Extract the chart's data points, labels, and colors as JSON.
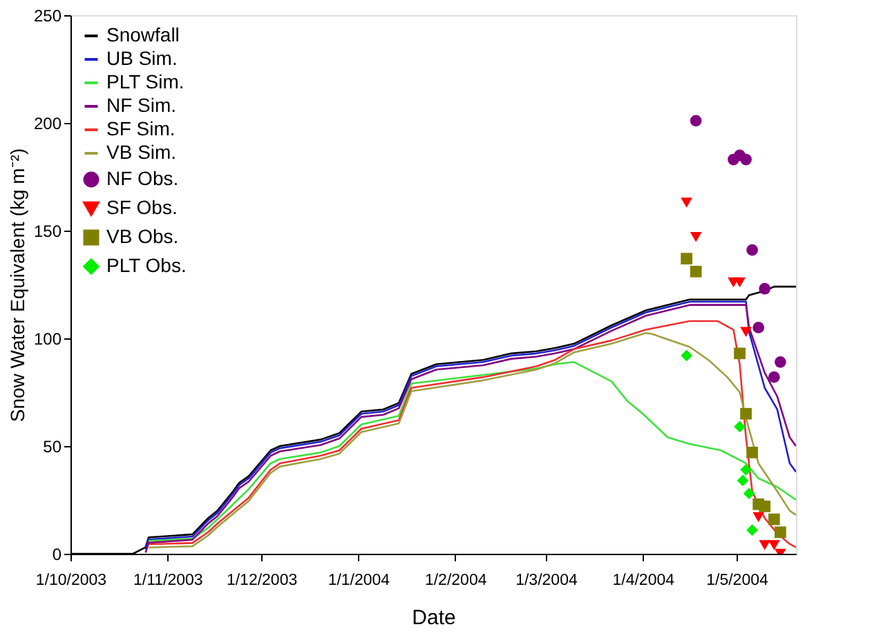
{
  "chart_data": {
    "type": "line",
    "xlabel": "Date",
    "ylabel": "Snow Water Equivalent (kg m⁻²)",
    "xlim": [
      "2003-10-01",
      "2004-05-20"
    ],
    "ylim": [
      0,
      250
    ],
    "yticks": [
      0,
      50,
      100,
      150,
      200,
      250
    ],
    "xticks": [
      {
        "value": "2003-10-01",
        "label": "1/10/2003"
      },
      {
        "value": "2003-11-01",
        "label": "1/11/2003"
      },
      {
        "value": "2003-12-01",
        "label": "1/12/2003"
      },
      {
        "value": "2004-01-01",
        "label": "1/1/2004"
      },
      {
        "value": "2004-02-01",
        "label": "1/2/2004"
      },
      {
        "value": "2004-03-01",
        "label": "1/3/2004"
      },
      {
        "value": "2004-04-01",
        "label": "1/4/2004"
      },
      {
        "value": "2004-05-01",
        "label": "1/5/2004"
      }
    ],
    "grid": false,
    "legend": "top left",
    "series": [
      {
        "name": "Snowfall",
        "color": "#000000",
        "x": [
          "2003-10-01",
          "2003-10-21",
          "2003-10-25",
          "2003-10-26",
          "2003-11-09",
          "2003-11-14",
          "2003-11-17",
          "2003-11-22",
          "2003-11-24",
          "2003-11-27",
          "2003-12-04",
          "2003-12-07",
          "2003-12-20",
          "2003-12-26",
          "2004-01-02",
          "2004-01-09",
          "2004-01-14",
          "2004-01-18",
          "2004-01-26",
          "2004-02-10",
          "2004-02-19",
          "2004-02-27",
          "2004-03-04",
          "2004-03-10",
          "2004-03-22",
          "2004-04-02",
          "2004-04-16",
          "2004-05-04",
          "2004-05-05",
          "2004-05-10",
          "2004-05-13",
          "2004-05-20"
        ],
        "values": [
          0,
          0,
          3,
          7.6,
          9,
          16.5,
          20,
          29,
          33,
          36,
          48,
          50,
          53,
          56,
          66,
          67,
          70,
          83.5,
          88,
          90,
          93,
          94,
          95.5,
          97.5,
          106,
          113,
          118,
          118,
          120,
          122,
          124,
          124
        ]
      },
      {
        "name": "UB Sim.",
        "color": "#2020d0",
        "x": [
          "2003-10-25",
          "2003-10-26",
          "2003-11-09",
          "2003-11-14",
          "2003-11-17",
          "2003-11-22",
          "2003-11-24",
          "2003-11-27",
          "2003-12-04",
          "2003-12-07",
          "2003-12-20",
          "2003-12-26",
          "2004-01-02",
          "2004-01-09",
          "2004-01-14",
          "2004-01-18",
          "2004-01-26",
          "2004-02-10",
          "2004-02-19",
          "2004-02-27",
          "2004-03-04",
          "2004-03-10",
          "2004-03-22",
          "2004-04-02",
          "2004-04-16",
          "2004-05-04",
          "2004-05-05",
          "2004-05-10",
          "2004-05-14",
          "2004-05-18",
          "2004-05-20"
        ],
        "values": [
          2,
          6.6,
          8,
          15.5,
          19,
          28,
          32,
          35,
          47,
          49,
          52,
          55,
          65,
          66,
          69,
          82.5,
          87,
          89,
          92,
          93,
          94.5,
          96.5,
          105,
          112,
          117,
          117,
          103,
          77,
          67,
          42,
          38
        ]
      },
      {
        "name": "PLT Sim.",
        "color": "#40e040",
        "x": [
          "2003-10-26",
          "2003-11-09",
          "2003-11-14",
          "2003-11-17",
          "2003-11-22",
          "2003-11-27",
          "2003-12-04",
          "2003-12-07",
          "2003-12-20",
          "2003-12-26",
          "2004-01-02",
          "2004-01-14",
          "2004-01-18",
          "2004-02-10",
          "2004-02-27",
          "2004-03-04",
          "2004-03-10",
          "2004-03-22",
          "2004-03-27",
          "2004-04-01",
          "2004-04-09",
          "2004-04-16",
          "2004-04-26",
          "2004-05-04",
          "2004-05-08",
          "2004-05-14",
          "2004-05-18",
          "2004-05-20"
        ],
        "values": [
          6,
          7,
          12,
          16,
          23,
          30,
          42,
          44,
          47,
          50,
          60,
          64,
          79,
          83,
          86,
          88,
          89,
          80,
          71,
          65,
          54,
          51,
          48,
          42,
          35,
          31,
          27,
          25
        ]
      },
      {
        "name": "NF Sim.",
        "color": "#800080",
        "x": [
          "2003-10-25",
          "2003-10-26",
          "2003-11-09",
          "2003-11-14",
          "2003-11-17",
          "2003-11-22",
          "2003-11-24",
          "2003-11-27",
          "2003-12-04",
          "2003-12-07",
          "2003-12-20",
          "2003-12-26",
          "2004-01-02",
          "2004-01-09",
          "2004-01-14",
          "2004-01-18",
          "2004-01-26",
          "2004-02-10",
          "2004-02-19",
          "2004-02-27",
          "2004-03-04",
          "2004-03-10",
          "2004-03-22",
          "2004-04-02",
          "2004-04-16",
          "2004-05-04",
          "2004-05-05",
          "2004-05-10",
          "2004-05-14",
          "2004-05-18",
          "2004-05-20"
        ],
        "values": [
          0.5,
          5.1,
          6.5,
          14,
          17.5,
          26.5,
          30.5,
          33.5,
          45.5,
          47.5,
          50.5,
          53.5,
          63.5,
          64.5,
          67.5,
          81,
          85.5,
          87.5,
          90.5,
          91.5,
          93,
          95,
          103.5,
          110.5,
          115.5,
          115.5,
          105,
          84,
          73,
          54,
          50
        ]
      },
      {
        "name": "SF Sim.",
        "color": "#f03030",
        "x": [
          "2003-10-26",
          "2003-11-09",
          "2003-11-14",
          "2003-11-17",
          "2003-11-22",
          "2003-11-27",
          "2003-12-04",
          "2003-12-07",
          "2003-12-20",
          "2003-12-26",
          "2004-01-02",
          "2004-01-14",
          "2004-01-18",
          "2004-02-10",
          "2004-02-27",
          "2004-03-04",
          "2004-03-10",
          "2004-03-22",
          "2004-04-02",
          "2004-04-16",
          "2004-04-25",
          "2004-04-30",
          "2004-05-02",
          "2004-05-04",
          "2004-05-06",
          "2004-05-10",
          "2004-05-14",
          "2004-05-18",
          "2004-05-20"
        ],
        "values": [
          4.4,
          5,
          10,
          14,
          20,
          26,
          39,
          42,
          45.5,
          48,
          58,
          62,
          77,
          82,
          87,
          90,
          95,
          99,
          104,
          108,
          108,
          104,
          88,
          54,
          29,
          16.5,
          9.5,
          4.5,
          3
        ]
      },
      {
        "name": "VB Sim.",
        "color": "#a0a040",
        "x": [
          "2003-10-26",
          "2003-11-09",
          "2003-11-14",
          "2003-11-17",
          "2003-11-22",
          "2003-11-27",
          "2003-12-04",
          "2003-12-07",
          "2003-12-20",
          "2003-12-26",
          "2004-01-02",
          "2004-01-14",
          "2004-01-18",
          "2004-02-10",
          "2004-02-27",
          "2004-03-04",
          "2004-03-10",
          "2004-03-22",
          "2004-04-02",
          "2004-04-04",
          "2004-04-16",
          "2004-04-22",
          "2004-04-28",
          "2004-05-02",
          "2004-05-04",
          "2004-05-08",
          "2004-05-14",
          "2004-05-18",
          "2004-05-20"
        ],
        "values": [
          2.9,
          3.5,
          8.5,
          12.5,
          18.5,
          24.5,
          37.5,
          40.5,
          44,
          46.5,
          56.5,
          60.5,
          75.5,
          80.5,
          85.5,
          88.5,
          93.5,
          97.5,
          102.5,
          102,
          96,
          90,
          82,
          75,
          63,
          42,
          29,
          20,
          18
        ]
      },
      {
        "name": "NF Obs.",
        "type": "scatter",
        "marker": "circle",
        "color": "#800080",
        "x": [
          "2004-04-18",
          "2004-04-30",
          "2004-05-02",
          "2004-05-04",
          "2004-05-06",
          "2004-05-08",
          "2004-05-10",
          "2004-05-13",
          "2004-05-15"
        ],
        "values": [
          201,
          183,
          185,
          183,
          141,
          105,
          123,
          82,
          89
        ]
      },
      {
        "name": "SF Obs.",
        "type": "scatter",
        "marker": "triangle",
        "color": "#ff0000",
        "x": [
          "2004-04-15",
          "2004-04-18",
          "2004-04-30",
          "2004-05-02",
          "2004-05-04",
          "2004-05-08",
          "2004-05-10",
          "2004-05-13",
          "2004-05-15"
        ],
        "values": [
          163,
          147,
          126,
          126,
          103,
          17,
          4,
          4,
          0
        ]
      },
      {
        "name": "VB Obs.",
        "type": "scatter",
        "marker": "square",
        "color": "#808000",
        "x": [
          "2004-04-15",
          "2004-04-18",
          "2004-05-02",
          "2004-05-04",
          "2004-05-06",
          "2004-05-08",
          "2004-05-10",
          "2004-05-13",
          "2004-05-15"
        ],
        "values": [
          137,
          131,
          93,
          65,
          47,
          23,
          22,
          16,
          10
        ]
      },
      {
        "name": "PLT Obs.",
        "type": "scatter",
        "marker": "diamond",
        "color": "#00ee00",
        "x": [
          "2004-04-15",
          "2004-05-02",
          "2004-05-03",
          "2004-05-04",
          "2004-05-05",
          "2004-05-06"
        ],
        "values": [
          92,
          59,
          34,
          39,
          28,
          11
        ]
      }
    ]
  }
}
